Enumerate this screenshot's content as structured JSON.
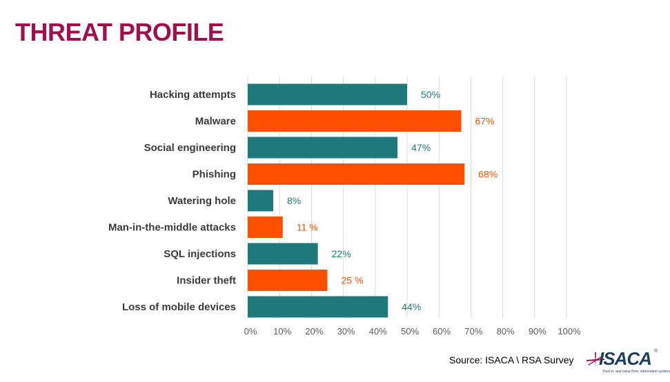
{
  "page": {
    "title": "THREAT PROFILE"
  },
  "source": "Source: ISACA \\ RSA Survey",
  "logo": {
    "word": "ISACA",
    "registered": "®",
    "tagline": "Trust in, and value from, information systems"
  },
  "colors": {
    "title": "#a0104f",
    "teal": "#1f7b7b",
    "orange": "#ff5000",
    "grid": "#d9d9d9"
  },
  "chart_data": {
    "type": "bar",
    "orientation": "horizontal",
    "categories": [
      "Hacking attempts",
      "Malware",
      "Social engineering",
      "Phishing",
      "Watering hole",
      "Man-in-the-middle attacks",
      "SQL injections",
      "Insider theft",
      "Loss of mobile devices"
    ],
    "values": [
      50,
      67,
      47,
      68,
      8,
      11,
      22,
      25,
      44
    ],
    "data_labels": [
      "50%",
      "67%",
      "47%",
      "68%",
      "8%",
      "11 %",
      "22%",
      "25 %",
      "44%"
    ],
    "bar_colors": [
      "#1f7b7b",
      "#ff5000",
      "#1f7b7b",
      "#ff5000",
      "#1f7b7b",
      "#ff5000",
      "#1f7b7b",
      "#ff5000",
      "#1f7b7b"
    ],
    "xlim": [
      0,
      100
    ],
    "x_ticks": [
      0,
      10,
      20,
      30,
      40,
      50,
      60,
      70,
      80,
      90,
      100
    ],
    "x_tick_labels": [
      "0%",
      "10%",
      "20%",
      "30%",
      "40%",
      "50%",
      "60%",
      "70%",
      "80%",
      "90%",
      "100%"
    ],
    "grid": true,
    "legend": false
  }
}
